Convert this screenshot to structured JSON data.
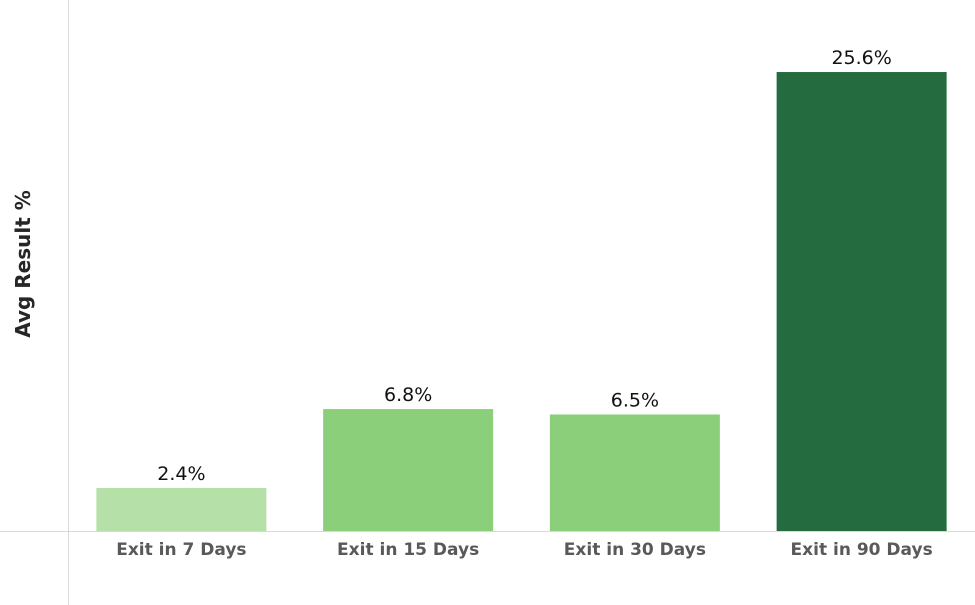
{
  "chart_data": {
    "type": "bar",
    "title": "",
    "xlabel": "",
    "ylabel": "Avg Result %",
    "categories": [
      "Exit in 7 Days",
      "Exit in 15 Days",
      "Exit in 30 Days",
      "Exit in 90 Days"
    ],
    "values": [
      2.4,
      6.8,
      6.5,
      25.6
    ],
    "value_labels": [
      "2.4%",
      "6.8%",
      "6.5%",
      "25.6%"
    ],
    "bar_colors": [
      "#b5e0a7",
      "#8bcf7b",
      "#8bcf7b",
      "#246b3f"
    ],
    "ylim": [
      0,
      28
    ],
    "grid": false,
    "legend": "none"
  }
}
